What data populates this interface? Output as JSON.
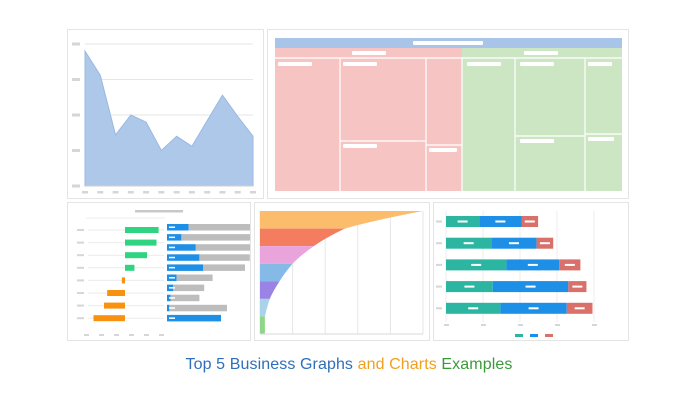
{
  "caption": {
    "part1": "Top 5 Business Graphs",
    "part2": " and Charts",
    "part3": " Examples"
  },
  "colors": {
    "caption_blue": "#2f6fba",
    "caption_orange": "#f0a020",
    "caption_green": "#3a9a3a",
    "area_fill": "#aec8ea",
    "area_line": "#9ab8e2",
    "matrix_header": "#a8c4e8",
    "matrix_red": "#f6c4c2",
    "matrix_green": "#cce6c4",
    "tornado_green": "#2fd481",
    "tornado_orange": "#f7910f",
    "bar_blue": "#1e8fe6",
    "bar_gray": "#bdbdbd",
    "teal": "#2cb5a0",
    "salmon": "#d9706a",
    "funnel": [
      "#fbbd6b",
      "#f37d5e",
      "#e9a4db",
      "#85b9e6",
      "#9b82e5",
      "#a9d3e8",
      "#8fd68a"
    ]
  },
  "chart_data": [
    {
      "type": "area",
      "values": [
        95,
        78,
        36,
        50,
        45,
        25,
        35,
        28,
        46,
        64,
        49,
        35
      ],
      "ylim": [
        0,
        100
      ],
      "grid": true,
      "axis_labels_legible": false
    },
    {
      "type": "table",
      "header_band": true,
      "groups": [
        {
          "color": "red",
          "columns": 3
        },
        {
          "color": "green",
          "columns": 3
        }
      ]
    },
    {
      "type": "bar",
      "subtype": "diverging-and-horizontal",
      "left_series_values": [
        32,
        30,
        21,
        9,
        -3,
        -17,
        -20,
        -30
      ],
      "right_series": [
        {
          "name": "",
          "color": "blue",
          "values": [
            18,
            12,
            24,
            27,
            30,
            8,
            5,
            3,
            2,
            45
          ]
        },
        {
          "name": "",
          "color": "gray",
          "values": [
            58,
            62,
            52,
            42,
            35,
            30,
            26,
            24,
            48,
            0
          ]
        }
      ]
    },
    {
      "type": "area",
      "subtype": "funnel",
      "values": [
        100,
        52,
        33,
        20,
        12,
        6,
        3
      ]
    },
    {
      "type": "bar",
      "subtype": "stacked-horizontal",
      "series": [
        {
          "name": "",
          "color": "teal",
          "values": [
            22,
            30,
            40,
            31,
            36
          ]
        },
        {
          "name": "",
          "color": "blue",
          "values": [
            28,
            30,
            35,
            50,
            44
          ]
        },
        {
          "name": "",
          "color": "salmon",
          "values": [
            11,
            11,
            14,
            12,
            17
          ]
        }
      ],
      "legend": "bottom"
    }
  ]
}
